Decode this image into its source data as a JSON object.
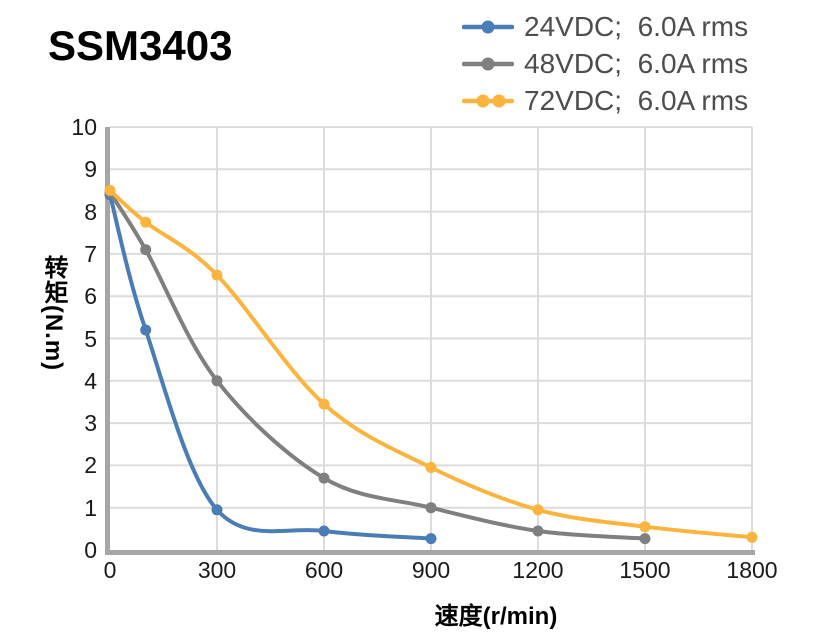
{
  "title": "SSM3403",
  "legend": {
    "items": [
      {
        "id": "24vdc",
        "label": "24VDC;  6.0A rms",
        "color": "#4A7CB5",
        "dots": 1
      },
      {
        "id": "48vdc",
        "label": "48VDC;  6.0A rms",
        "color": "#7F7F7F",
        "dots": 1
      },
      {
        "id": "72vdc",
        "label": "72VDC;  6.0A rms",
        "color": "#FBB43E",
        "dots": 2
      }
    ]
  },
  "chart_data": {
    "type": "line",
    "title": "SSM3403",
    "xlabel": "速度(r/min)",
    "ylabel": "转矩(N.m)",
    "xlim": [
      0,
      1800
    ],
    "ylim": [
      0,
      10
    ],
    "x_ticks": [
      0,
      300,
      600,
      900,
      1200,
      1500,
      1800
    ],
    "y_ticks": [
      0,
      1,
      2,
      3,
      4,
      5,
      6,
      7,
      8,
      9,
      10
    ],
    "grid": true,
    "legend_position": "top-right",
    "series": [
      {
        "id": "24vdc",
        "name": "24VDC; 6.0A rms",
        "color": "#4A7CB5",
        "x": [
          0,
          100,
          300,
          600,
          900
        ],
        "y": [
          8.4,
          5.2,
          0.95,
          0.45,
          0.27
        ]
      },
      {
        "id": "48vdc",
        "name": "48VDC; 6.0A rms",
        "color": "#7F7F7F",
        "x": [
          0,
          100,
          300,
          600,
          900,
          1200,
          1500
        ],
        "y": [
          8.45,
          7.1,
          4.0,
          1.7,
          1.0,
          0.45,
          0.27
        ]
      },
      {
        "id": "72vdc",
        "name": "72VDC; 6.0A rms",
        "color": "#FBB43E",
        "x": [
          0,
          100,
          300,
          600,
          900,
          1200,
          1500,
          1800
        ],
        "y": [
          8.5,
          7.75,
          6.5,
          3.45,
          1.95,
          0.95,
          0.55,
          0.3
        ]
      }
    ],
    "colors": {
      "grid": "#DCDCDC",
      "axis": "#A6A6A6",
      "tick_text": "#1A1A1A",
      "legend_text": "#4D4D4D"
    }
  }
}
